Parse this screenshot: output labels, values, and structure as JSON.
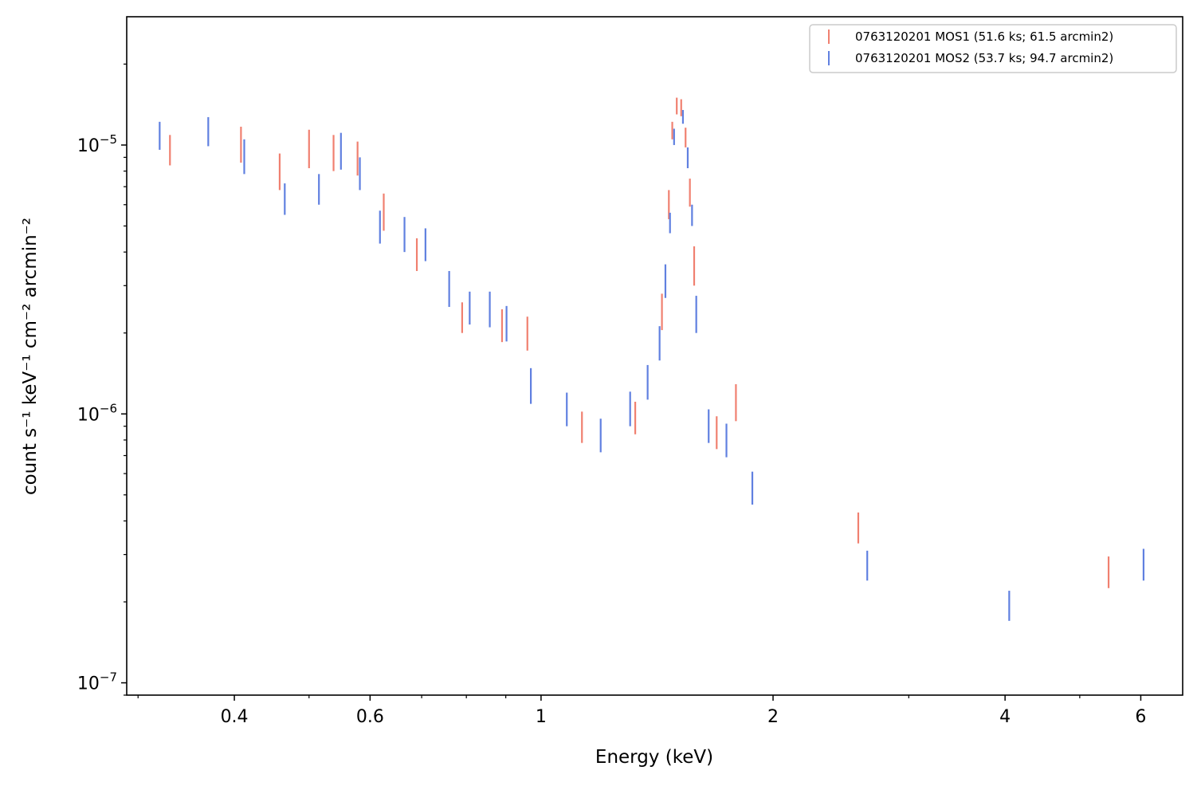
{
  "chart_data": {
    "type": "scatter",
    "xlabel": "Energy (keV)",
    "ylabel": "count s⁻¹ keV⁻¹ cm⁻² arcmin⁻²",
    "xscale": "log",
    "yscale": "log",
    "xlim": [
      0.29,
      6.8
    ],
    "ylim": [
      9e-08,
      3e-05
    ],
    "x_ticks": [
      {
        "value": 0.4,
        "label": "0.4"
      },
      {
        "value": 0.6,
        "label": "0.6"
      },
      {
        "value": 1,
        "label": "1"
      },
      {
        "value": 2,
        "label": "2"
      },
      {
        "value": 4,
        "label": "4"
      },
      {
        "value": 6,
        "label": "6"
      }
    ],
    "y_ticks": [
      {
        "value": 1e-07,
        "base": "10",
        "exp": "−7"
      },
      {
        "value": 1e-06,
        "base": "10",
        "exp": "−6"
      },
      {
        "value": 1e-05,
        "base": "10",
        "exp": "−5"
      }
    ],
    "legend_position": "top-right",
    "grid": false,
    "series": [
      {
        "name": "0763120201 MOS1 (51.6 ks; 61.5 arcmin2)",
        "color": "#f08070",
        "points": [
          [
            0.33,
            8.4e-06,
            1.09e-05
          ],
          [
            0.408,
            8.6e-06,
            1.17e-05
          ],
          [
            0.458,
            6.8e-06,
            9.3e-06
          ],
          [
            0.5,
            8.2e-06,
            1.14e-05
          ],
          [
            0.538,
            8e-06,
            1.09e-05
          ],
          [
            0.578,
            7.7e-06,
            1.03e-05
          ],
          [
            0.625,
            4.8e-06,
            6.6e-06
          ],
          [
            0.69,
            3.4e-06,
            4.5e-06
          ],
          [
            0.79,
            2e-06,
            2.6e-06
          ],
          [
            0.89,
            1.85e-06,
            2.45e-06
          ],
          [
            0.96,
            1.72e-06,
            2.3e-06
          ],
          [
            1.13,
            7.8e-07,
            1.02e-06
          ],
          [
            1.325,
            8.4e-07,
            1.11e-06
          ],
          [
            1.435,
            2.05e-06,
            2.8e-06
          ],
          [
            1.465,
            5.3e-06,
            6.8e-06
          ],
          [
            1.48,
            1.05e-05,
            1.22e-05
          ],
          [
            1.5,
            1.3e-05,
            1.5e-05
          ],
          [
            1.52,
            1.28e-05,
            1.48e-05
          ],
          [
            1.54,
            9.8e-06,
            1.16e-05
          ],
          [
            1.56,
            5.9e-06,
            7.5e-06
          ],
          [
            1.58,
            3e-06,
            4.2e-06
          ],
          [
            1.69,
            7.4e-07,
            9.8e-07
          ],
          [
            1.79,
            9.4e-07,
            1.29e-06
          ],
          [
            2.58,
            3.3e-07,
            4.3e-07
          ],
          [
            5.45,
            2.25e-07,
            2.95e-07
          ]
        ]
      },
      {
        "name": "0763120201 MOS2 (53.7 ks; 94.7 arcmin2)",
        "color": "#6080e0",
        "points": [
          [
            0.32,
            9.6e-06,
            1.22e-05
          ],
          [
            0.37,
            9.9e-06,
            1.27e-05
          ],
          [
            0.412,
            7.8e-06,
            1.05e-05
          ],
          [
            0.465,
            5.5e-06,
            7.2e-06
          ],
          [
            0.515,
            6e-06,
            7.8e-06
          ],
          [
            0.55,
            8.1e-06,
            1.11e-05
          ],
          [
            0.582,
            6.8e-06,
            9e-06
          ],
          [
            0.618,
            4.3e-06,
            5.7e-06
          ],
          [
            0.665,
            4e-06,
            5.4e-06
          ],
          [
            0.708,
            3.7e-06,
            4.9e-06
          ],
          [
            0.76,
            2.5e-06,
            3.4e-06
          ],
          [
            0.808,
            2.15e-06,
            2.85e-06
          ],
          [
            0.858,
            2.1e-06,
            2.85e-06
          ],
          [
            0.902,
            1.86e-06,
            2.52e-06
          ],
          [
            0.97,
            1.09e-06,
            1.48e-06
          ],
          [
            1.08,
            9e-07,
            1.2e-06
          ],
          [
            1.195,
            7.2e-07,
            9.6e-07
          ],
          [
            1.305,
            9e-07,
            1.21e-06
          ],
          [
            1.375,
            1.13e-06,
            1.52e-06
          ],
          [
            1.425,
            1.58e-06,
            2.12e-06
          ],
          [
            1.45,
            2.7e-06,
            3.6e-06
          ],
          [
            1.47,
            4.7e-06,
            5.6e-06
          ],
          [
            1.488,
            1e-05,
            1.15e-05
          ],
          [
            1.528,
            1.2e-05,
            1.35e-05
          ],
          [
            1.55,
            8.2e-06,
            9.8e-06
          ],
          [
            1.57,
            5e-06,
            6e-06
          ],
          [
            1.59,
            2e-06,
            2.75e-06
          ],
          [
            1.65,
            7.8e-07,
            1.04e-06
          ],
          [
            1.74,
            6.9e-07,
            9.2e-07
          ],
          [
            1.88,
            4.6e-07,
            6.1e-07
          ],
          [
            2.65,
            2.4e-07,
            3.1e-07
          ],
          [
            4.05,
            1.7e-07,
            2.2e-07
          ],
          [
            6.05,
            2.4e-07,
            3.15e-07
          ]
        ]
      }
    ]
  }
}
